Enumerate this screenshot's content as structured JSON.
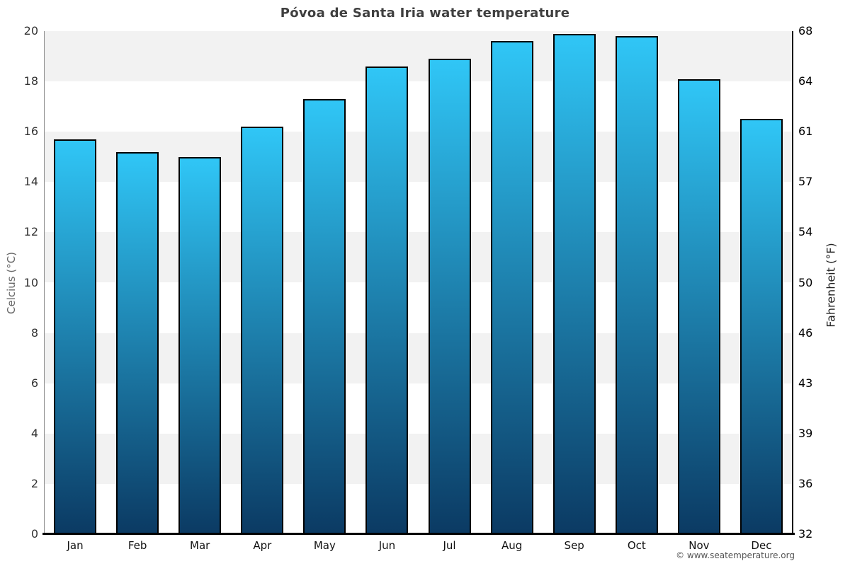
{
  "title": "Póvoa de Santa Iria water temperature",
  "footer": "© www.seatemperature.org",
  "chart_data": {
    "type": "bar",
    "title": "Póvoa de Santa Iria water temperature",
    "categories": [
      "Jan",
      "Feb",
      "Mar",
      "Apr",
      "May",
      "Jun",
      "Jul",
      "Aug",
      "Sep",
      "Oct",
      "Nov",
      "Dec"
    ],
    "values": [
      15.7,
      15.2,
      15.0,
      16.2,
      17.3,
      18.6,
      18.9,
      19.6,
      19.9,
      19.8,
      18.1,
      16.5
    ],
    "unit": "°C",
    "ylabel_left": "Celcius (°C)",
    "ylabel_right": "Fahrenheit (°F)",
    "ylim": [
      0,
      20
    ],
    "yticks_left": [
      0,
      2,
      4,
      6,
      8,
      10,
      12,
      14,
      16,
      18,
      20
    ],
    "yticks_right": [
      32,
      36,
      39,
      43,
      46,
      50,
      54,
      57,
      61,
      64,
      68
    ],
    "grid": "alternating-horizontal-bands",
    "legend": "none",
    "colors": {
      "bar_gradient_top": "#30c6f6",
      "bar_gradient_bottom": "#0b3a63",
      "bar_border": "#000000",
      "band_gray": "#f2f2f2",
      "band_white": "#ffffff"
    }
  }
}
